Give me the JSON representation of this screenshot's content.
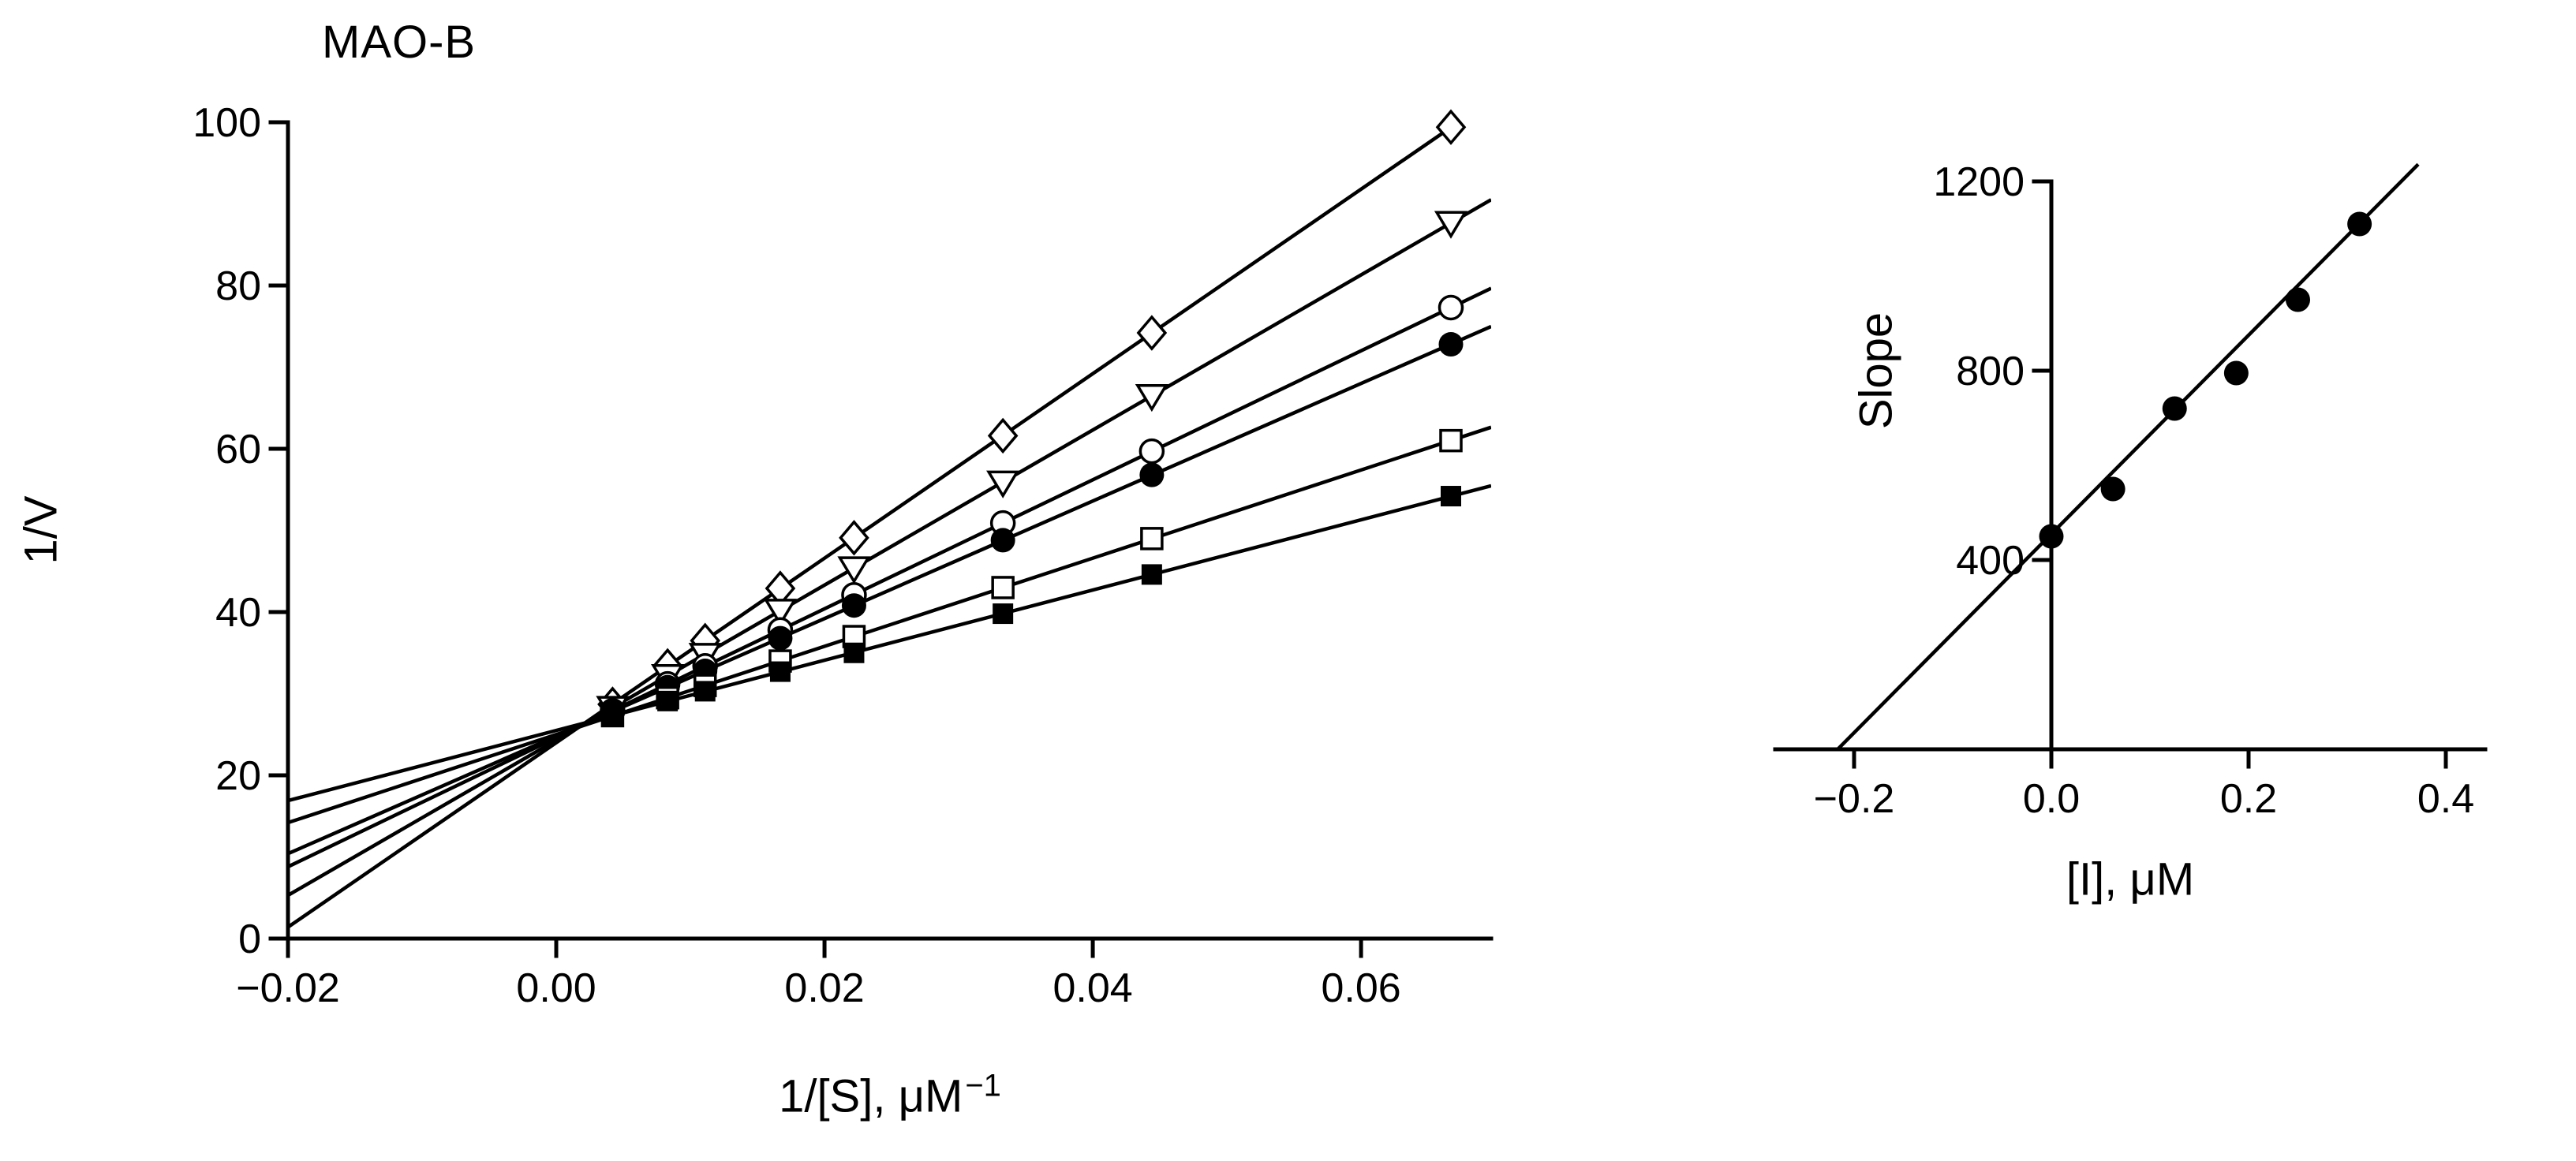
{
  "colors": {
    "foreground": "#000000",
    "background": "#ffffff"
  },
  "chart_data": [
    {
      "type": "scatter",
      "title": "MAO-B",
      "ylabel": "1/V",
      "xlabel_prefix": "1/[S], μM",
      "xlabel_superscript": "−1",
      "xlim": [
        -0.02,
        0.0697
      ],
      "ylim": [
        0,
        100
      ],
      "yaxis_x": -0.02,
      "xaxis_y": 0,
      "xticks": [
        -0.02,
        0,
        0.02,
        0.04,
        0.06
      ],
      "xtick_labels": [
        "−0.02",
        "0.00",
        "0.02",
        "0.04",
        "0.06"
      ],
      "yticks": [
        0,
        20,
        40,
        60,
        80,
        100
      ],
      "ytick_labels": [
        "0",
        "20",
        "40",
        "60",
        "80",
        "100"
      ],
      "grid": false,
      "legend": "none",
      "series": [
        {
          "name": "series-open-diamond",
          "marker": "open-diamond",
          "x": [
            0.0042,
            0.0083,
            0.0111,
            0.0167,
            0.0222,
            0.0333,
            0.0444,
            0.0667
          ],
          "y": [
            28.7,
            33.4,
            36.5,
            42.9,
            49.1,
            61.6,
            74.2,
            99.4
          ],
          "fit": {
            "slope": 1130,
            "intercept": 24.0
          }
        },
        {
          "name": "series-open-triangle-down",
          "marker": "open-triangle-down",
          "x": [
            0.0042,
            0.0083,
            0.0111,
            0.0167,
            0.0222,
            0.0333,
            0.0444,
            0.0667
          ],
          "y": [
            28.3,
            32.2,
            34.8,
            40.2,
            45.4,
            55.9,
            66.5,
            87.7
          ],
          "fit": {
            "slope": 950,
            "intercept": 24.3
          }
        },
        {
          "name": "series-open-circle",
          "marker": "open-circle",
          "x": [
            0.0042,
            0.0083,
            0.0111,
            0.0167,
            0.0222,
            0.0333,
            0.0444,
            0.0667
          ],
          "y": [
            27.9,
            31.2,
            33.4,
            37.8,
            42.1,
            50.9,
            59.7,
            77.3
          ],
          "fit": {
            "slope": 790,
            "intercept": 24.6
          }
        },
        {
          "name": "series-filled-circle",
          "marker": "filled-circle",
          "x": [
            0.0042,
            0.0083,
            0.0111,
            0.0167,
            0.0222,
            0.0333,
            0.0444,
            0.0667
          ],
          "y": [
            27.8,
            30.8,
            32.8,
            36.8,
            40.8,
            48.8,
            56.8,
            72.8
          ],
          "fit": {
            "slope": 720,
            "intercept": 24.8
          }
        },
        {
          "name": "series-open-square",
          "marker": "open-square",
          "x": [
            0.0042,
            0.0083,
            0.0111,
            0.0167,
            0.0222,
            0.0333,
            0.0444,
            0.0667
          ],
          "y": [
            27.3,
            29.5,
            31.0,
            34.0,
            37.0,
            43.0,
            49.0,
            61.0
          ],
          "fit": {
            "slope": 540,
            "intercept": 25.0
          }
        },
        {
          "name": "series-filled-square",
          "marker": "filled-square",
          "x": [
            0.0042,
            0.0083,
            0.0111,
            0.0167,
            0.0222,
            0.0333,
            0.0444,
            0.0667
          ],
          "y": [
            27.3,
            29.1,
            30.3,
            32.7,
            35.0,
            39.8,
            44.6,
            54.2
          ],
          "fit": {
            "slope": 430,
            "intercept": 25.5
          }
        }
      ]
    },
    {
      "type": "scatter",
      "title": "",
      "ylabel": "Slope",
      "xlabel_prefix": "[I], μM",
      "xlabel_superscript": "",
      "xlim": [
        -0.28,
        0.44
      ],
      "ylim": [
        0,
        1200
      ],
      "yaxis_x": 0,
      "xaxis_y": 0,
      "xticks": [
        -0.2,
        0,
        0.2,
        0.4
      ],
      "xtick_labels": [
        "−0.2",
        "0.0",
        "0.2",
        "0.4"
      ],
      "yticks": [
        400,
        800,
        1200
      ],
      "ytick_labels": [
        "400",
        "800",
        "1200"
      ],
      "grid": false,
      "legend": "none",
      "series": [
        {
          "name": "series-slope-replot",
          "marker": "filled-circle",
          "x": [
            0.0,
            0.0625,
            0.125,
            0.1875,
            0.25,
            0.3125
          ],
          "y": [
            450,
            550,
            720,
            795,
            950,
            1110
          ],
          "fit": {
            "slope": 2100,
            "intercept": 455,
            "x_draw": [
              -0.2167,
              0.372
            ]
          }
        }
      ]
    }
  ]
}
